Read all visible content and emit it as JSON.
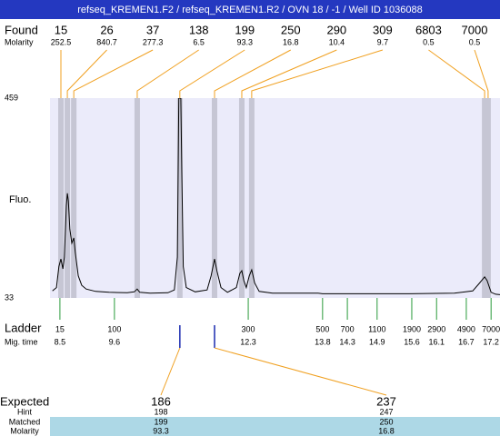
{
  "chart_data": {
    "type": "electropherogram",
    "title": "refseq_KREMEN1.F2 / refseq_KREMEN1.R2 / OVN 18 / -1 / Well ID 1036088",
    "ylabel": "Fluo.",
    "ylim": [
      33,
      459
    ],
    "yticks": [
      33,
      459
    ],
    "xlim": [
      8.3,
      17.38
    ],
    "color": "#000000",
    "plot_color": "#ebebfa",
    "band_color": "#c6c6d4",
    "x": [
      8.35,
      8.43,
      8.48,
      8.52,
      8.56,
      8.59,
      8.63,
      8.65,
      8.67,
      8.7,
      8.74,
      8.78,
      8.81,
      8.87,
      8.94,
      9.03,
      9.22,
      9.49,
      9.86,
      10.0,
      10.06,
      10.11,
      10.32,
      10.68,
      10.81,
      10.87,
      10.9,
      10.94,
      10.96,
      10.99,
      11.05,
      11.23,
      11.47,
      11.55,
      11.62,
      11.67,
      11.75,
      11.88,
      12.06,
      12.13,
      12.17,
      12.21,
      12.26,
      12.32,
      12.37,
      12.43,
      12.52,
      12.79,
      13.71,
      13.8,
      14.63,
      15.55,
      16.46,
      16.83,
      16.97,
      17.07,
      17.12,
      17.2,
      17.29,
      17.38
    ],
    "values": [
      48,
      55,
      100,
      116,
      95,
      120,
      230,
      256,
      240,
      180,
      150,
      161,
      130,
      80,
      60,
      52,
      47,
      45,
      44,
      46,
      52,
      45,
      43,
      44,
      50,
      120,
      459,
      459,
      300,
      100,
      55,
      46,
      50,
      80,
      116,
      90,
      55,
      45,
      55,
      85,
      91,
      70,
      55,
      80,
      93,
      65,
      47,
      43,
      43,
      42,
      42,
      42,
      43,
      48,
      65,
      78,
      70,
      45,
      41,
      40
    ],
    "found": {
      "label": "Found",
      "sizes": [
        15,
        26,
        37,
        138,
        199,
        250,
        290,
        309,
        6803,
        7000
      ],
      "molarity_label": "Molarity",
      "molarity": [
        252.5,
        840.7,
        277.3,
        6.5,
        93.3,
        16.8,
        10.4,
        9.7,
        0.5,
        0.5
      ],
      "peak_times": [
        8.52,
        8.65,
        8.78,
        10.06,
        10.92,
        11.62,
        12.17,
        12.37,
        17.07,
        17.14
      ]
    },
    "ladder": {
      "label": "Ladder",
      "sizes": [
        15,
        100,
        300,
        500,
        700,
        1100,
        1900,
        2900,
        4900,
        7000
      ],
      "time_label": "Mig. time",
      "times": [
        8.5,
        9.6,
        12.3,
        13.8,
        14.3,
        14.9,
        15.6,
        16.1,
        16.7,
        17.2
      ]
    },
    "expected": {
      "label": "Expected",
      "values": [
        186,
        237
      ],
      "hint_label": "Hint",
      "hint": [
        198,
        247
      ],
      "matched_label": "Matched",
      "matched": [
        199,
        250
      ],
      "molarity_label": "Molarity",
      "molarity": [
        93.3,
        16.8
      ]
    }
  }
}
